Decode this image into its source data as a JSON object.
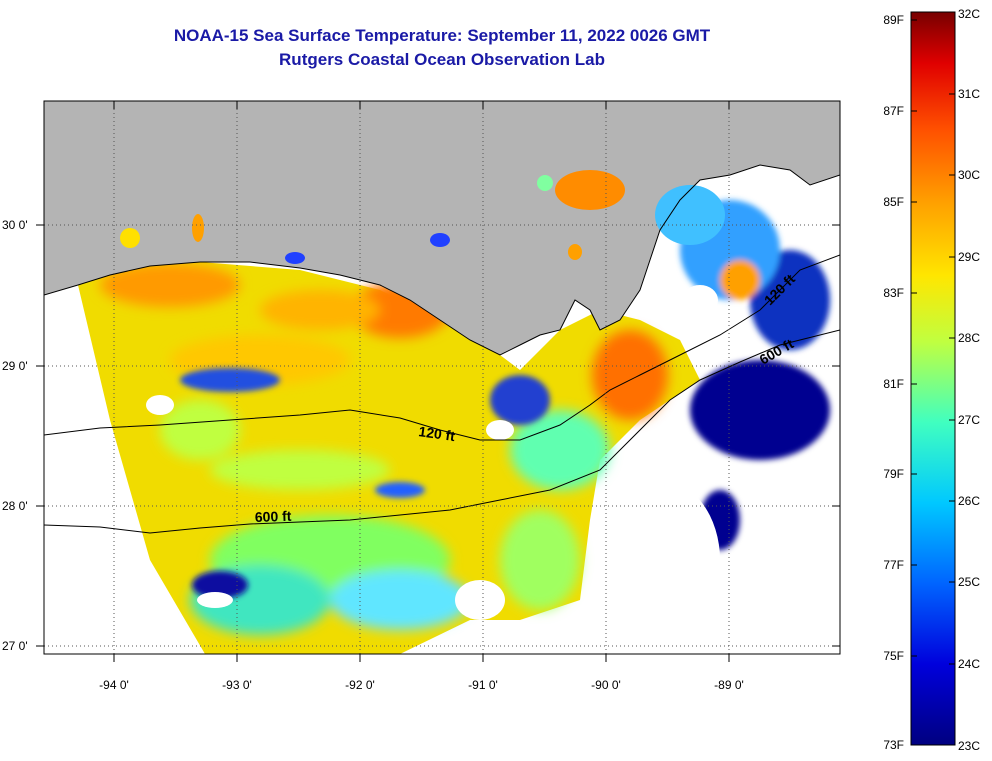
{
  "title": {
    "line1": "NOAA-15 Sea Surface Temperature:  September 11, 2022 0026 GMT",
    "line2": "Rutgers Coastal Ocean Observation Lab"
  },
  "map": {
    "x_ticks": [
      "-94 0'",
      "-93 0'",
      "-92 0'",
      "-91 0'",
      "-90 0'",
      "-89 0'"
    ],
    "y_ticks": [
      "30 0'",
      "29 0'",
      "28 0'",
      "27 0'"
    ],
    "contour_labels": [
      "120 ft",
      "600 ft",
      "120 ft",
      "600 ft"
    ],
    "land_color": "#b4b4b4",
    "ocean_nodata_color": "#ffffff"
  },
  "colorbar": {
    "fahrenheit": [
      "89F",
      "87F",
      "85F",
      "83F",
      "81F",
      "79F",
      "77F",
      "75F",
      "73F"
    ],
    "celsius": [
      "32C",
      "31C",
      "30C",
      "29C",
      "28C",
      "27C",
      "26C",
      "25C",
      "24C",
      "23C"
    ],
    "colors": [
      "#7a0000",
      "#e00000",
      "#ff5a00",
      "#ffb400",
      "#e6f000",
      "#80ff80",
      "#00e6ff",
      "#0080ff",
      "#0000dc",
      "#000080"
    ]
  }
}
